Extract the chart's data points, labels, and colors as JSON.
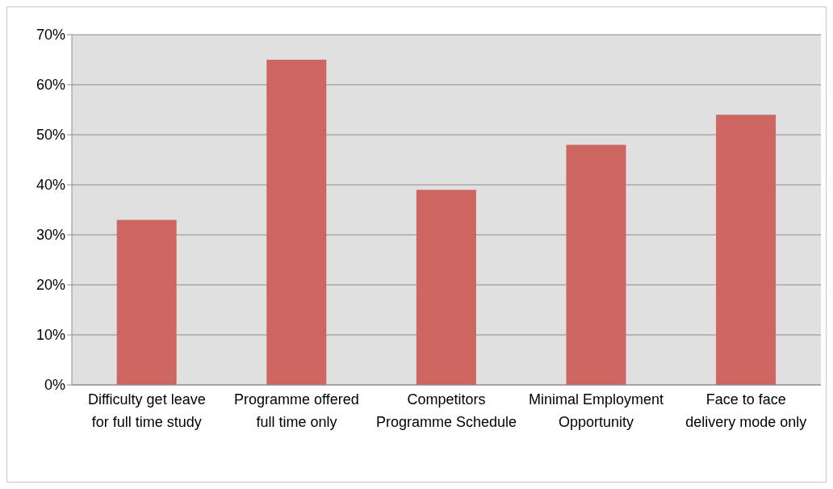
{
  "chart_data": {
    "type": "bar",
    "categories": [
      "Difficulty get leave for full time study",
      "Programme offered full time only",
      "Competitors Programme Schedule",
      "Minimal Employment Opportunity",
      "Face to face delivery mode only"
    ],
    "values": [
      33,
      65,
      39,
      48,
      54
    ],
    "color": "#cd6660",
    "ylim": [
      0,
      70
    ],
    "yticks": [
      {
        "value": 0,
        "label": "0%"
      },
      {
        "value": 10,
        "label": "10%"
      },
      {
        "value": 20,
        "label": "20%"
      },
      {
        "value": 30,
        "label": "30%"
      },
      {
        "value": 40,
        "label": "40%"
      },
      {
        "value": 50,
        "label": "50%"
      },
      {
        "value": 60,
        "label": "60%"
      },
      {
        "value": 70,
        "label": "70%"
      }
    ],
    "grid": "y",
    "legend": false
  }
}
